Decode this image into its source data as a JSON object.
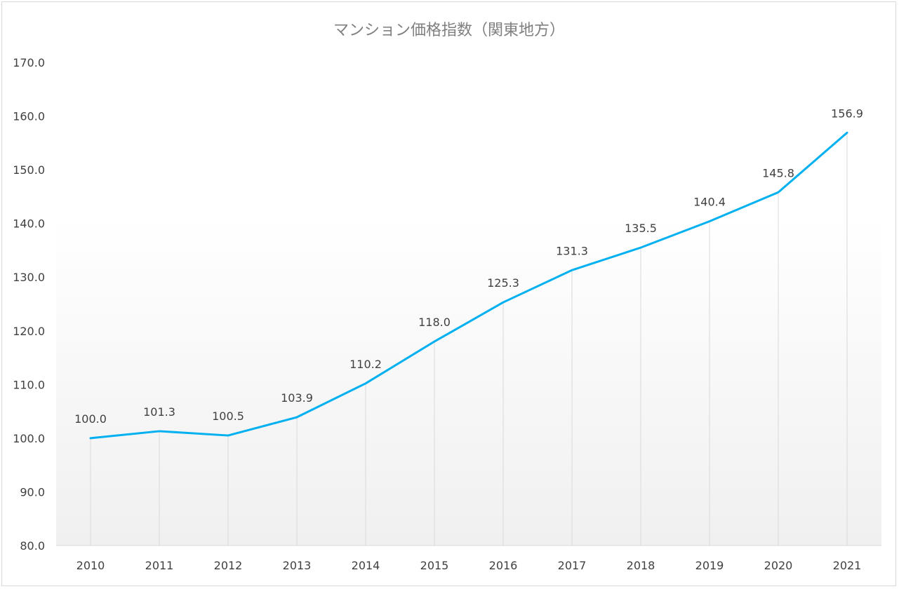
{
  "chart_data": {
    "type": "line",
    "title": "マンション価格指数（関東地方）",
    "xlabel": "",
    "ylabel": "",
    "categories": [
      "2010",
      "2011",
      "2012",
      "2013",
      "2014",
      "2015",
      "2016",
      "2017",
      "2018",
      "2019",
      "2020",
      "2021"
    ],
    "values": [
      100.0,
      101.3,
      100.5,
      103.9,
      110.2,
      118.0,
      125.3,
      131.3,
      135.5,
      140.4,
      145.8,
      156.9
    ],
    "value_labels": [
      "100.0",
      "101.3",
      "100.5",
      "103.9",
      "110.2",
      "118.0",
      "125.3",
      "131.3",
      "135.5",
      "140.4",
      "145.8",
      "156.9"
    ],
    "ylim": [
      80.0,
      170.0
    ],
    "yticks": [
      "80.0",
      "90.0",
      "100.0",
      "110.0",
      "120.0",
      "130.0",
      "140.0",
      "150.0",
      "160.0",
      "170.0"
    ],
    "grid": "vertical drop lines",
    "legend": "none",
    "line_color": "#00b0f0",
    "plot_background": "light gray gradient"
  }
}
